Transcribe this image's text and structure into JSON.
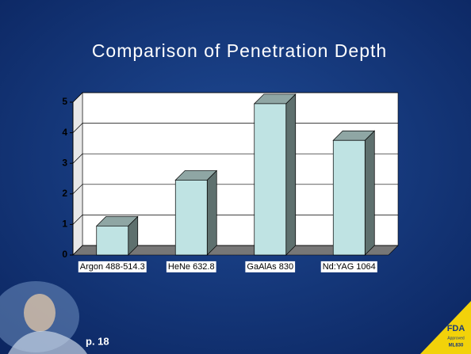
{
  "chart_data": {
    "type": "bar",
    "title": "Comparison of Penetration Depth",
    "categories": [
      "Argon 488-514.3",
      "HeNe 632.8",
      "GaAlAs 830",
      "Nd:YAG 1064"
    ],
    "values": [
      0.95,
      2.45,
      4.95,
      3.75
    ],
    "color": "#bfe3e3",
    "ylim": [
      0,
      5
    ],
    "yticks": [
      0,
      1,
      2,
      3,
      4,
      5
    ],
    "grid": true
  },
  "footer": {
    "page": "p. 18",
    "badge": [
      "FDA",
      "Approved",
      "ML830"
    ]
  }
}
